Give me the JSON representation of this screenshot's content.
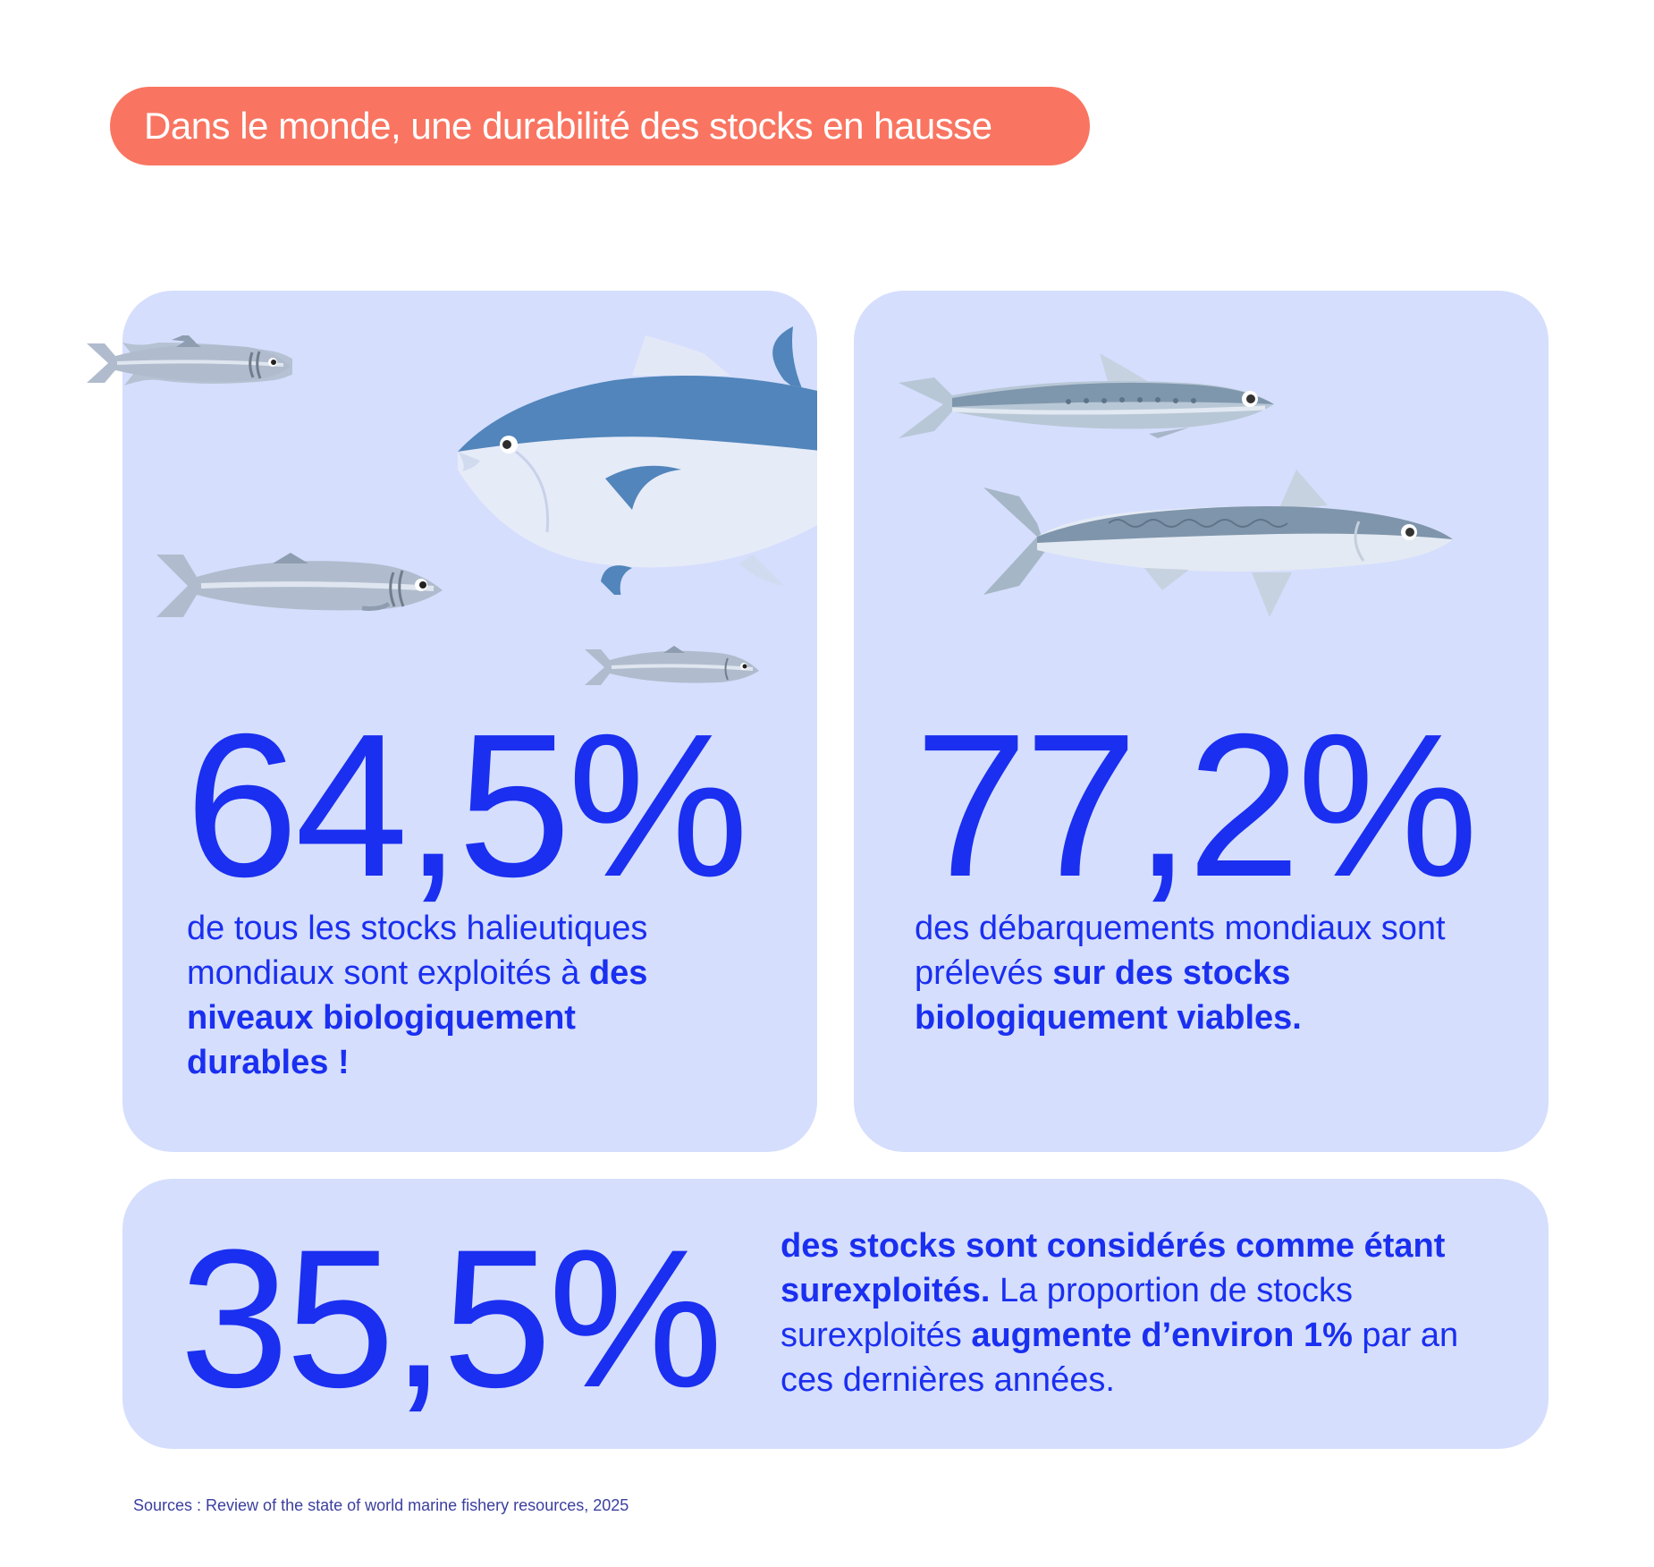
{
  "header": {
    "title": "Dans le monde, une durabilité des stocks en hausse"
  },
  "cards": {
    "left": {
      "value": "64,5%",
      "text_plain": "de tous les stocks halieutiques mondiaux sont exploités à ",
      "text_bold": "des niveaux biologiquement durables !"
    },
    "right": {
      "value": "77,2%",
      "text_plain": "des débarquements mondiaux sont prélevés ",
      "text_bold": "sur des stocks biologiquement viables."
    },
    "bottom": {
      "value": "35,5%",
      "text_bold_1": "des stocks sont considérés comme étant surexploités.",
      "text_plain_1": " La proportion de stocks surexploités ",
      "text_bold_2": "augmente d’environ 1%",
      "text_plain_2": " par an ces dernières années."
    }
  },
  "footer": {
    "source": "Sources :  Review of the state of world marine fishery resources, 2025"
  },
  "colors": {
    "accent": "#1a2ff0",
    "pill": "#f97561",
    "card": "#d5defd"
  },
  "icons": [
    "sardine-icon",
    "tuna-icon",
    "sardine-icon",
    "sardine-icon",
    "sardine-icon",
    "mackerel-icon"
  ]
}
